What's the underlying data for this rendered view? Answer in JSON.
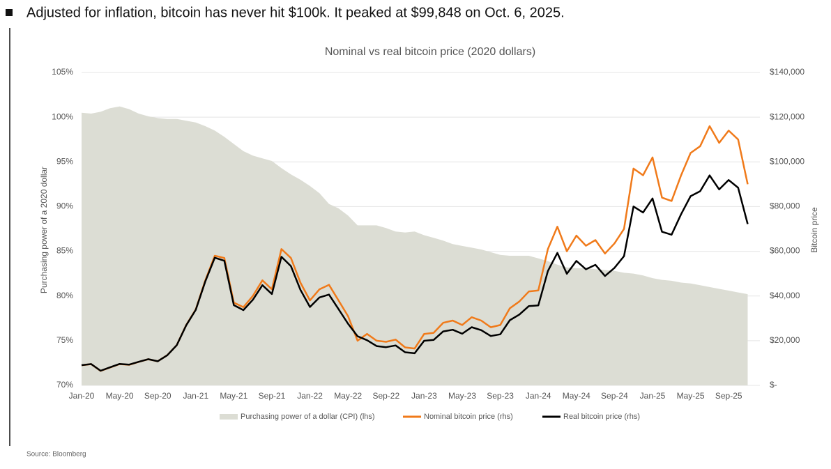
{
  "headline": "Adjusted for inflation, bitcoin has never hit $100k. It peaked at $99,848 on Oct. 6, 2025.",
  "source": "Source: Bloomberg",
  "chart_data": {
    "type": "line",
    "title": "Nominal vs real bitcoin price (2020 dollars)",
    "y_label": "Purchasing power of a 2020 dollar",
    "y2_label": "Bitcoin price",
    "categories": [
      "Jan-20",
      null,
      null,
      null,
      "May-20",
      null,
      null,
      null,
      "Sep-20",
      null,
      null,
      null,
      "Jan-21",
      null,
      null,
      null,
      "May-21",
      null,
      null,
      null,
      "Sep-21",
      null,
      null,
      null,
      "Jan-22",
      null,
      null,
      null,
      "May-22",
      null,
      null,
      null,
      "Sep-22",
      null,
      null,
      null,
      "Jan-23",
      null,
      null,
      null,
      "May-23",
      null,
      null,
      null,
      "Sep-23",
      null,
      null,
      null,
      "Jan-24",
      null,
      null,
      null,
      "May-24",
      null,
      null,
      null,
      "Sep-24",
      null,
      null,
      null,
      "Jan-25",
      null,
      null,
      null,
      "May-25",
      null,
      null,
      null,
      "Sep-25",
      null,
      null
    ],
    "ylim": [
      70,
      105
    ],
    "yticks": [
      {
        "value": 70,
        "label": "70%"
      },
      {
        "value": 75,
        "label": "75%"
      },
      {
        "value": 80,
        "label": "80%"
      },
      {
        "value": 85,
        "label": "85%"
      },
      {
        "value": 90,
        "label": "90%"
      },
      {
        "value": 95,
        "label": "95%"
      },
      {
        "value": 100,
        "label": "100%"
      },
      {
        "value": 105,
        "label": "105%"
      }
    ],
    "y2lim": [
      0,
      140000
    ],
    "y2ticks": [
      {
        "value": 0,
        "label": "$-"
      },
      {
        "value": 20000,
        "label": "$20,000"
      },
      {
        "value": 40000,
        "label": "$40,000"
      },
      {
        "value": 60000,
        "label": "$60,000"
      },
      {
        "value": 80000,
        "label": "$80,000"
      },
      {
        "value": 100000,
        "label": "$100,000"
      },
      {
        "value": 120000,
        "label": "$120,000"
      },
      {
        "value": 140000,
        "label": "$140,000"
      }
    ],
    "grid": true,
    "series": [
      {
        "name": "Purchasing power of a dollar (CPI) (lhs)",
        "kind": "area",
        "color": "#dcddd4",
        "values": [
          100.5,
          100.4,
          100.6,
          101.0,
          101.2,
          100.9,
          100.4,
          100.1,
          99.9,
          99.8,
          99.8,
          99.6,
          99.4,
          99.0,
          98.5,
          97.8,
          97.0,
          96.2,
          95.7,
          95.4,
          95.1,
          94.3,
          93.6,
          93.0,
          92.3,
          91.5,
          90.3,
          89.8,
          89.0,
          87.9,
          87.9,
          87.9,
          87.6,
          87.2,
          87.1,
          87.2,
          86.8,
          86.5,
          86.2,
          85.8,
          85.6,
          85.4,
          85.2,
          84.9,
          84.6,
          84.5,
          84.5,
          84.5,
          84.2,
          83.9,
          83.5,
          83.2,
          83.1,
          83.1,
          83.0,
          82.9,
          82.8,
          82.6,
          82.5,
          82.3,
          82.0,
          81.8,
          81.7,
          81.5,
          81.4,
          81.2,
          81.0,
          80.8,
          80.6,
          80.4,
          80.2
        ]
      },
      {
        "name": "Nominal bitcoin price (rhs)",
        "kind": "line",
        "axis": "y2",
        "color": "#f07a1a",
        "values": [
          9000,
          9500,
          6500,
          8000,
          9500,
          9200,
          10500,
          11700,
          10800,
          13500,
          18000,
          27000,
          34000,
          47000,
          58000,
          57000,
          37000,
          35000,
          40000,
          47000,
          43000,
          61000,
          57000,
          46000,
          38000,
          43000,
          45000,
          38000,
          31000,
          20000,
          23000,
          20000,
          19500,
          20500,
          17000,
          16500,
          23000,
          23500,
          28000,
          29000,
          27000,
          30500,
          29000,
          26000,
          27000,
          34500,
          37500,
          42000,
          42500,
          61000,
          71000,
          60000,
          67000,
          62500,
          65000,
          59000,
          63500,
          70000,
          97000,
          94000,
          102000,
          84000,
          82500,
          94000,
          104000,
          107000,
          116000,
          108500,
          114000,
          110000,
          90000
        ]
      },
      {
        "name": "Real bitcoin price (rhs)",
        "kind": "line",
        "axis": "y2",
        "color": "#000000",
        "values": [
          9045,
          9538,
          6539,
          8080,
          9614,
          9283,
          10542,
          11712,
          10789,
          13473,
          17964,
          26892,
          33796,
          46530,
          57130,
          55746,
          35890,
          33670,
          38280,
          44838,
          40893,
          57523,
          53352,
          42780,
          35074,
          39345,
          40635,
          34124,
          27590,
          21980,
          20217,
          17580,
          17082,
          17876,
          14807,
          14388,
          19964,
          20328,
          24136,
          24882,
          23112,
          26047,
          24708,
          22074,
          22842,
          29153,
          31688,
          35490,
          35785,
          51179,
          59285,
          49920,
          55677,
          51938,
          53950,
          48911,
          52578,
          57820,
          80025,
          77362,
          83640,
          68712,
          67403,
          76610,
          84656,
          86884,
          93960,
          87668,
          91884,
          88440,
          72180
        ]
      }
    ]
  }
}
